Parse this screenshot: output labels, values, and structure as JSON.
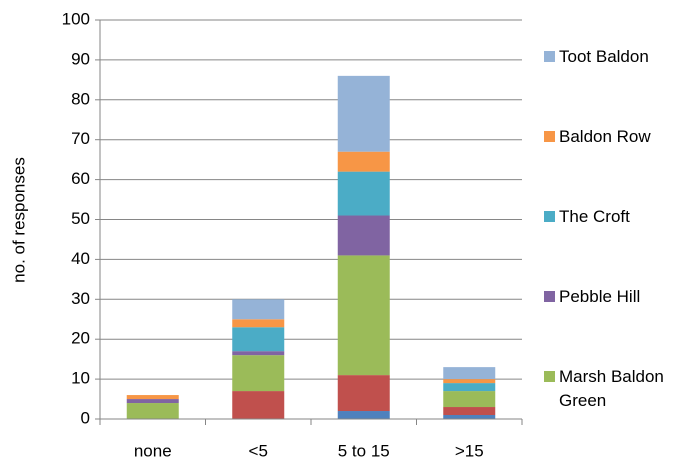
{
  "chart_data": {
    "type": "stacked_bar",
    "y_label": "no. of responses",
    "categories": [
      "none",
      "<5",
      "5 to 15",
      ">15"
    ],
    "series": [
      {
        "color": "#4f81bd",
        "values": [
          0,
          0,
          2,
          1
        ]
      },
      {
        "color": "#c0504d",
        "values": [
          0,
          7,
          9,
          2
        ]
      },
      {
        "name": "Marsh Baldon Green",
        "color": "#9bbb59",
        "values": [
          4,
          9,
          30,
          4
        ]
      },
      {
        "name": "Pebble Hill",
        "color": "#8064a2",
        "values": [
          1,
          1,
          10,
          0
        ]
      },
      {
        "name": "The Croft",
        "color": "#4bacc6",
        "values": [
          0,
          6,
          11,
          2
        ]
      },
      {
        "name": "Baldon Row",
        "color": "#f79646",
        "values": [
          1,
          2,
          5,
          1
        ]
      },
      {
        "name": "Toot Baldon",
        "color": "#95b3d7",
        "values": [
          0,
          5,
          19,
          3
        ]
      }
    ],
    "ylim": [
      0,
      100
    ],
    "yticks": [
      0,
      10,
      20,
      30,
      40,
      50,
      60,
      70,
      80,
      90,
      100
    ],
    "grid": true,
    "legend": "right"
  }
}
